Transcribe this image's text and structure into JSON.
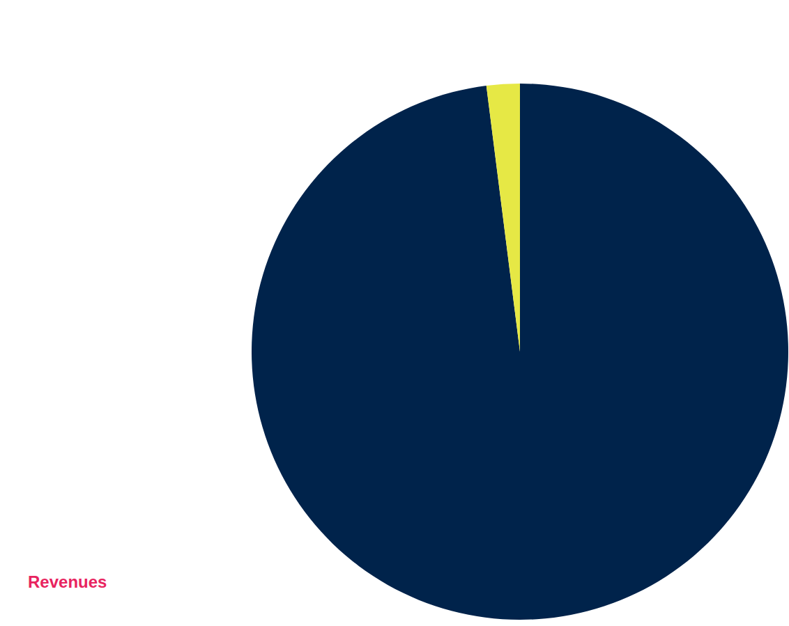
{
  "chart_data": {
    "type": "pie",
    "title": "Revenues",
    "values": [
      98,
      2
    ],
    "colors": [
      "#00234b",
      "#e6e845"
    ]
  }
}
